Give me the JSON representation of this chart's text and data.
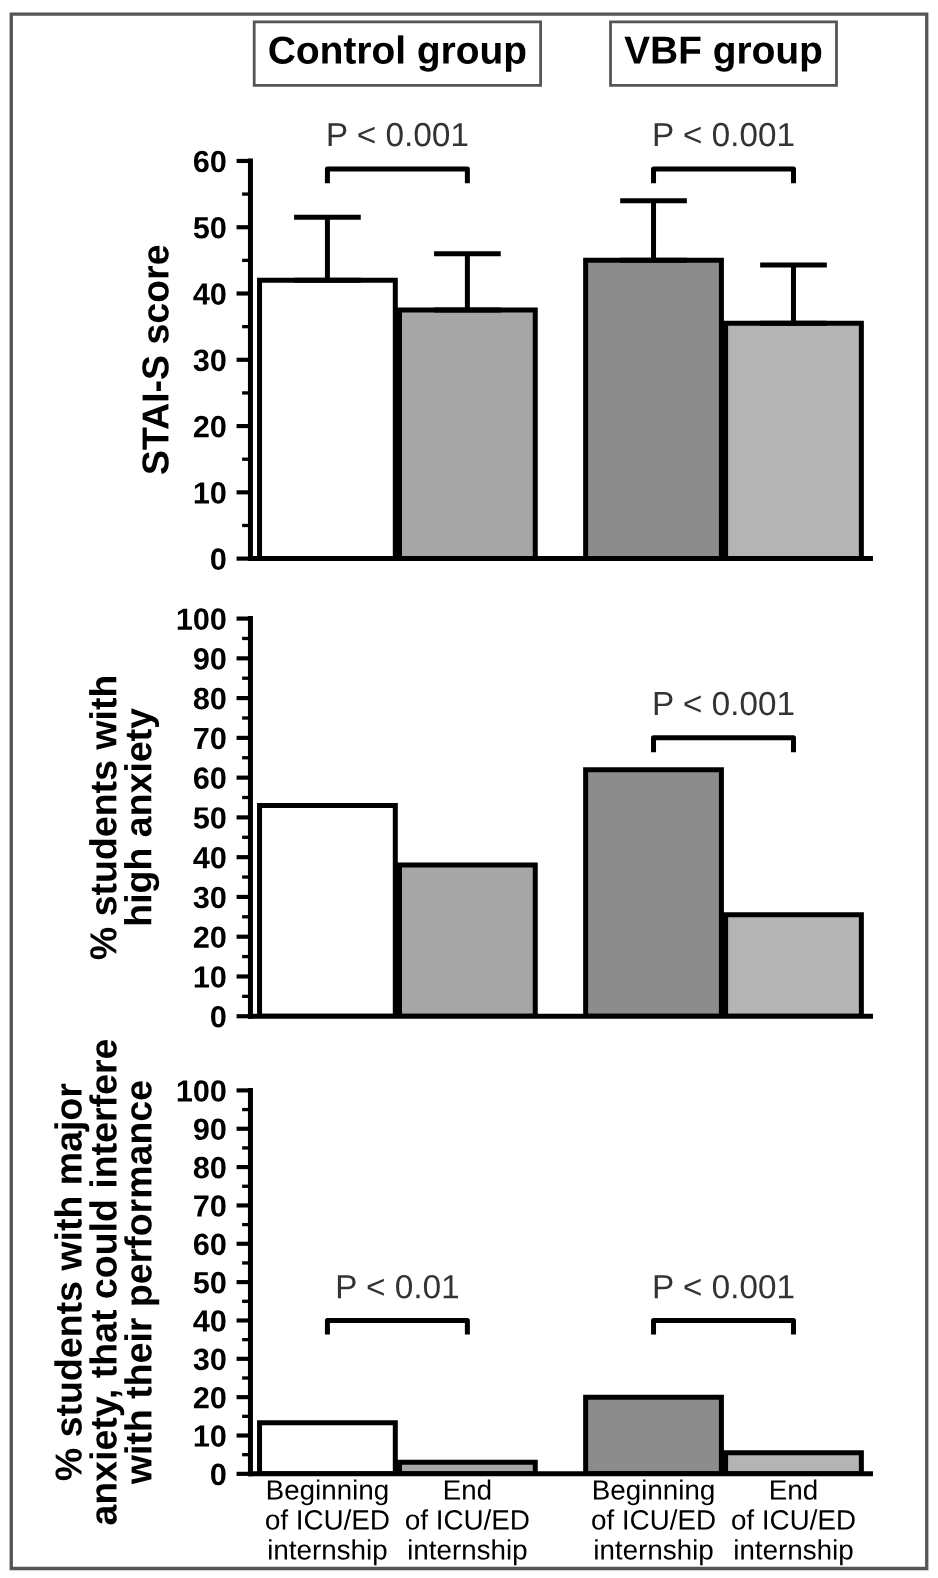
{
  "chart_data": [
    {
      "type": "bar",
      "ylabel": "STAI-S score",
      "categories": [
        null,
        null,
        null,
        null
      ],
      "values": [
        42,
        37.5,
        45,
        35.5
      ],
      "errors": [
        [
          42,
          51.5
        ],
        [
          37.5,
          46
        ],
        [
          45,
          54
        ],
        [
          35.5,
          44.3
        ]
      ],
      "colors": [
        "#ffffff",
        "#a6a6a6",
        "#8c8c8c",
        "#b4b4b4"
      ],
      "ylim": [
        0,
        60
      ],
      "yticks": [
        0,
        10,
        20,
        30,
        40,
        50,
        60
      ],
      "tick_labels": "y",
      "annotations": [
        "P < 0.001",
        "P < 0.001",
        "Control group",
        "VBF group"
      ]
    },
    {
      "type": "bar",
      "ylabel": "% students with\nhigh anxiety",
      "categories": [
        null,
        null,
        null,
        null
      ],
      "values": [
        53,
        38,
        62,
        25.5
      ],
      "colors": [
        "#ffffff",
        "#a6a6a6",
        "#8c8c8c",
        "#b4b4b4"
      ],
      "ylim": [
        0,
        100
      ],
      "yticks": [
        0,
        10,
        20,
        30,
        40,
        50,
        60,
        70,
        80,
        90,
        100
      ],
      "tick_labels": "y",
      "annotations": [
        null,
        "P < 0.001"
      ]
    },
    {
      "type": "bar",
      "ylabel": "% students with major\nanxiety, that could interfere\nwith their performance",
      "categories": [
        "Beginning\nof ICU/ED\ninternship",
        "End\nof ICU/ED\ninternship",
        "Beginning\nof ICU/ED\ninternship",
        "End\nof ICU/ED\ninternship"
      ],
      "values": [
        13.3,
        3,
        20,
        5.5
      ],
      "colors": [
        "#ffffff",
        "#a6a6a6",
        "#8c8c8c",
        "#b4b4b4"
      ],
      "ylim": [
        0,
        100
      ],
      "yticks": [
        0,
        10,
        20,
        30,
        40,
        50,
        60,
        70,
        80,
        90,
        100
      ],
      "annotations": [
        "P < 0.01",
        "P < 0.001"
      ]
    }
  ]
}
